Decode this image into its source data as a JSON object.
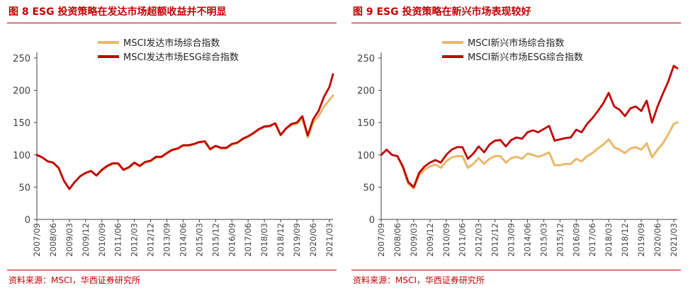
{
  "panels": [
    {
      "figure_title": "图 8 ESG 投资策略在发达市场超额收益并不明显",
      "source": "资料来源：MSCI，华西证券研究所"
    },
    {
      "figure_title": "图 9 ESG 投资策略在新兴市场表现较好",
      "source": "资料来源：MSCI，华西证券研究所"
    }
  ],
  "colors": {
    "msci": "#e8b96a",
    "esg": "#c00000",
    "axis": "#404040",
    "text": "#404040"
  },
  "chart_data": [
    {
      "type": "line",
      "title": "",
      "xlabel": "",
      "ylabel": "",
      "ylim": [
        0,
        250
      ],
      "yticks": [
        0,
        50,
        100,
        150,
        200,
        250
      ],
      "xlim": [
        "2007-09",
        "2021-05"
      ],
      "grid": false,
      "legend_position": "top-center",
      "x_tick_labels": [
        "2007/09",
        "2008/06",
        "2009/03",
        "2009/12",
        "2010/09",
        "2011/06",
        "2012/03",
        "2012/12",
        "2013/09",
        "2014/06",
        "2015/03",
        "2015/12",
        "2016/09",
        "2017/06",
        "2018/03",
        "2018/12",
        "2019/09",
        "2020/06",
        "2021/03"
      ],
      "series": [
        {
          "name": "MSCI发达市场综合指数",
          "color": "#e8b96a",
          "points": [
            [
              "2007-09",
              100
            ],
            [
              "2007-12",
              96
            ],
            [
              "2008-03",
              90
            ],
            [
              "2008-06",
              88
            ],
            [
              "2008-09",
              80
            ],
            [
              "2008-12",
              60
            ],
            [
              "2009-03",
              47
            ],
            [
              "2009-06",
              58
            ],
            [
              "2009-09",
              67
            ],
            [
              "2009-12",
              72
            ],
            [
              "2010-03",
              75
            ],
            [
              "2010-06",
              68
            ],
            [
              "2010-09",
              76
            ],
            [
              "2010-12",
              82
            ],
            [
              "2011-03",
              86
            ],
            [
              "2011-06",
              86
            ],
            [
              "2011-09",
              76
            ],
            [
              "2011-12",
              80
            ],
            [
              "2012-03",
              87
            ],
            [
              "2012-06",
              82
            ],
            [
              "2012-09",
              88
            ],
            [
              "2012-12",
              90
            ],
            [
              "2013-03",
              96
            ],
            [
              "2013-06",
              96
            ],
            [
              "2013-09",
              102
            ],
            [
              "2013-12",
              107
            ],
            [
              "2014-03",
              109
            ],
            [
              "2014-06",
              114
            ],
            [
              "2014-09",
              114
            ],
            [
              "2014-12",
              116
            ],
            [
              "2015-03",
              119
            ],
            [
              "2015-06",
              120
            ],
            [
              "2015-09",
              108
            ],
            [
              "2015-12",
              113
            ],
            [
              "2016-03",
              110
            ],
            [
              "2016-06",
              110
            ],
            [
              "2016-09",
              116
            ],
            [
              "2016-12",
              118
            ],
            [
              "2017-03",
              124
            ],
            [
              "2017-06",
              128
            ],
            [
              "2017-09",
              133
            ],
            [
              "2017-12",
              139
            ],
            [
              "2018-03",
              143
            ],
            [
              "2018-06",
              144
            ],
            [
              "2018-09",
              148
            ],
            [
              "2018-12",
              130
            ],
            [
              "2019-03",
              140
            ],
            [
              "2019-06",
              146
            ],
            [
              "2019-09",
              148
            ],
            [
              "2019-12",
              156
            ],
            [
              "2020-03",
              127
            ],
            [
              "2020-06",
              150
            ],
            [
              "2020-09",
              160
            ],
            [
              "2020-12",
              175
            ],
            [
              "2021-03",
              185
            ],
            [
              "2021-05",
              192
            ]
          ]
        },
        {
          "name": "MSCI发达市场ESG综合指数",
          "color": "#c00000",
          "points": [
            [
              "2007-09",
              100
            ],
            [
              "2007-12",
              96
            ],
            [
              "2008-03",
              90
            ],
            [
              "2008-06",
              88
            ],
            [
              "2008-09",
              80
            ],
            [
              "2008-12",
              60
            ],
            [
              "2009-03",
              47
            ],
            [
              "2009-06",
              58
            ],
            [
              "2009-09",
              67
            ],
            [
              "2009-12",
              72
            ],
            [
              "2010-03",
              75
            ],
            [
              "2010-06",
              68
            ],
            [
              "2010-09",
              77
            ],
            [
              "2010-12",
              83
            ],
            [
              "2011-03",
              87
            ],
            [
              "2011-06",
              87
            ],
            [
              "2011-09",
              77
            ],
            [
              "2011-12",
              81
            ],
            [
              "2012-03",
              88
            ],
            [
              "2012-06",
              83
            ],
            [
              "2012-09",
              89
            ],
            [
              "2012-12",
              91
            ],
            [
              "2013-03",
              97
            ],
            [
              "2013-06",
              97
            ],
            [
              "2013-09",
              103
            ],
            [
              "2013-12",
              108
            ],
            [
              "2014-03",
              110
            ],
            [
              "2014-06",
              115
            ],
            [
              "2014-09",
              115
            ],
            [
              "2014-12",
              117
            ],
            [
              "2015-03",
              120
            ],
            [
              "2015-06",
              121
            ],
            [
              "2015-09",
              109
            ],
            [
              "2015-12",
              114
            ],
            [
              "2016-03",
              111
            ],
            [
              "2016-06",
              111
            ],
            [
              "2016-09",
              117
            ],
            [
              "2016-12",
              119
            ],
            [
              "2017-03",
              125
            ],
            [
              "2017-06",
              129
            ],
            [
              "2017-09",
              134
            ],
            [
              "2017-12",
              140
            ],
            [
              "2018-03",
              144
            ],
            [
              "2018-06",
              145
            ],
            [
              "2018-09",
              149
            ],
            [
              "2018-12",
              131
            ],
            [
              "2019-03",
              141
            ],
            [
              "2019-06",
              148
            ],
            [
              "2019-09",
              150
            ],
            [
              "2019-12",
              160
            ],
            [
              "2020-03",
              130
            ],
            [
              "2020-06",
              155
            ],
            [
              "2020-09",
              168
            ],
            [
              "2020-12",
              190
            ],
            [
              "2021-03",
              205
            ],
            [
              "2021-05",
              225
            ]
          ]
        }
      ]
    },
    {
      "type": "line",
      "title": "",
      "xlabel": "",
      "ylabel": "",
      "ylim": [
        0,
        250
      ],
      "yticks": [
        0,
        50,
        100,
        150,
        200,
        250
      ],
      "xlim": [
        "2007-09",
        "2021-05"
      ],
      "grid": false,
      "legend_position": "top-center",
      "x_tick_labels": [
        "2007/09",
        "2008/06",
        "2009/03",
        "2009/12",
        "2010/09",
        "2011/06",
        "2012/03",
        "2012/12",
        "2013/09",
        "2014/06",
        "2015/03",
        "2015/12",
        "2016/09",
        "2017/06",
        "2018/03",
        "2018/12",
        "2019/09",
        "2020/06",
        "2021/03"
      ],
      "series": [
        {
          "name": "MSCI新兴市场综合指数",
          "color": "#e8b96a",
          "points": [
            [
              "2007-09",
              100
            ],
            [
              "2007-12",
              108
            ],
            [
              "2008-03",
              100
            ],
            [
              "2008-06",
              98
            ],
            [
              "2008-09",
              80
            ],
            [
              "2008-12",
              55
            ],
            [
              "2009-03",
              48
            ],
            [
              "2009-06",
              68
            ],
            [
              "2009-09",
              77
            ],
            [
              "2009-12",
              82
            ],
            [
              "2010-03",
              85
            ],
            [
              "2010-06",
              80
            ],
            [
              "2010-09",
              90
            ],
            [
              "2010-12",
              96
            ],
            [
              "2011-03",
              98
            ],
            [
              "2011-06",
              98
            ],
            [
              "2011-09",
              80
            ],
            [
              "2011-12",
              86
            ],
            [
              "2012-03",
              95
            ],
            [
              "2012-06",
              86
            ],
            [
              "2012-09",
              94
            ],
            [
              "2012-12",
              98
            ],
            [
              "2013-03",
              98
            ],
            [
              "2013-06",
              88
            ],
            [
              "2013-09",
              95
            ],
            [
              "2013-12",
              97
            ],
            [
              "2014-03",
              94
            ],
            [
              "2014-06",
              102
            ],
            [
              "2014-09",
              100
            ],
            [
              "2014-12",
              97
            ],
            [
              "2015-03",
              100
            ],
            [
              "2015-06",
              104
            ],
            [
              "2015-09",
              84
            ],
            [
              "2015-12",
              84
            ],
            [
              "2016-03",
              86
            ],
            [
              "2016-06",
              86
            ],
            [
              "2016-09",
              94
            ],
            [
              "2016-12",
              90
            ],
            [
              "2017-03",
              98
            ],
            [
              "2017-06",
              103
            ],
            [
              "2017-09",
              110
            ],
            [
              "2017-12",
              116
            ],
            [
              "2018-03",
              124
            ],
            [
              "2018-06",
              112
            ],
            [
              "2018-09",
              108
            ],
            [
              "2018-12",
              103
            ],
            [
              "2019-03",
              110
            ],
            [
              "2019-06",
              112
            ],
            [
              "2019-09",
              108
            ],
            [
              "2019-12",
              118
            ],
            [
              "2020-03",
              96
            ],
            [
              "2020-06",
              108
            ],
            [
              "2020-09",
              118
            ],
            [
              "2020-12",
              132
            ],
            [
              "2021-03",
              148
            ],
            [
              "2021-05",
              150
            ]
          ]
        },
        {
          "name": "MSCI新兴市场ESG综合指数",
          "color": "#c00000",
          "points": [
            [
              "2007-09",
              100
            ],
            [
              "2007-12",
              108
            ],
            [
              "2008-03",
              100
            ],
            [
              "2008-06",
              98
            ],
            [
              "2008-09",
              82
            ],
            [
              "2008-12",
              58
            ],
            [
              "2009-03",
              50
            ],
            [
              "2009-06",
              72
            ],
            [
              "2009-09",
              82
            ],
            [
              "2009-12",
              88
            ],
            [
              "2010-03",
              92
            ],
            [
              "2010-06",
              88
            ],
            [
              "2010-09",
              100
            ],
            [
              "2010-12",
              108
            ],
            [
              "2011-03",
              112
            ],
            [
              "2011-06",
              112
            ],
            [
              "2011-09",
              94
            ],
            [
              "2011-12",
              102
            ],
            [
              "2012-03",
              113
            ],
            [
              "2012-06",
              104
            ],
            [
              "2012-09",
              116
            ],
            [
              "2012-12",
              122
            ],
            [
              "2013-03",
              123
            ],
            [
              "2013-06",
              113
            ],
            [
              "2013-09",
              123
            ],
            [
              "2013-12",
              127
            ],
            [
              "2014-03",
              125
            ],
            [
              "2014-06",
              135
            ],
            [
              "2014-09",
              138
            ],
            [
              "2014-12",
              135
            ],
            [
              "2015-03",
              140
            ],
            [
              "2015-06",
              145
            ],
            [
              "2015-09",
              122
            ],
            [
              "2015-12",
              124
            ],
            [
              "2016-03",
              126
            ],
            [
              "2016-06",
              127
            ],
            [
              "2016-09",
              139
            ],
            [
              "2016-12",
              135
            ],
            [
              "2017-03",
              148
            ],
            [
              "2017-06",
              157
            ],
            [
              "2017-09",
              168
            ],
            [
              "2017-12",
              180
            ],
            [
              "2018-03",
              196
            ],
            [
              "2018-06",
              175
            ],
            [
              "2018-09",
              170
            ],
            [
              "2018-12",
              160
            ],
            [
              "2019-03",
              172
            ],
            [
              "2019-06",
              175
            ],
            [
              "2019-09",
              168
            ],
            [
              "2019-12",
              184
            ],
            [
              "2020-03",
              150
            ],
            [
              "2020-06",
              175
            ],
            [
              "2020-09",
              195
            ],
            [
              "2020-12",
              214
            ],
            [
              "2021-03",
              238
            ],
            [
              "2021-05",
              234
            ]
          ]
        }
      ]
    }
  ]
}
